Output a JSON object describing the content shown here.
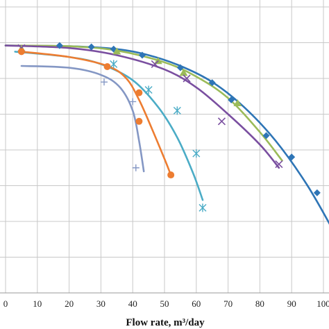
{
  "chart_data": {
    "type": "scatter",
    "title": "",
    "xlabel": "Flow rate, m³/day",
    "ylabel": "",
    "xlim": [
      0,
      100
    ],
    "x_ticks": [
      0,
      10,
      20,
      30,
      40,
      50,
      60,
      70,
      80,
      90,
      100
    ],
    "x_tick_labels": [
      "0",
      "10",
      "20",
      "30",
      "40",
      "50",
      "60",
      "70",
      "80",
      "90",
      "100"
    ],
    "ylim": [
      0,
      8
    ],
    "grid": true,
    "legend": "none",
    "series": [
      {
        "color": "#2e75b6",
        "marker": "diamond",
        "points": [
          [
            17,
            6.92
          ],
          [
            27,
            6.88
          ],
          [
            34,
            6.82
          ],
          [
            43,
            6.65
          ],
          [
            55,
            6.3
          ],
          [
            65,
            5.88
          ],
          [
            71,
            5.4
          ],
          [
            82,
            4.4
          ],
          [
            90,
            3.8
          ],
          [
            98,
            2.8
          ]
        ],
        "curve": [
          [
            0,
            6.92
          ],
          [
            20,
            6.9
          ],
          [
            35,
            6.82
          ],
          [
            45,
            6.65
          ],
          [
            55,
            6.35
          ],
          [
            65,
            5.9
          ],
          [
            75,
            5.2
          ],
          [
            85,
            4.25
          ],
          [
            95,
            3.0
          ],
          [
            104,
            1.6
          ]
        ]
      },
      {
        "color": "#9bbb59",
        "marker": "triangle",
        "points": [
          [
            5,
            6.82
          ],
          [
            35,
            6.75
          ],
          [
            48,
            6.48
          ],
          [
            56,
            6.15
          ],
          [
            73,
            5.3
          ]
        ],
        "curve": [
          [
            0,
            6.92
          ],
          [
            20,
            6.9
          ],
          [
            35,
            6.78
          ],
          [
            50,
            6.45
          ],
          [
            60,
            6.05
          ],
          [
            70,
            5.45
          ],
          [
            80,
            4.5
          ],
          [
            87,
            3.7
          ]
        ]
      },
      {
        "color": "#7a4fa0",
        "marker": "x",
        "points": [
          [
            5,
            6.85
          ],
          [
            47,
            6.4
          ],
          [
            57,
            6.0
          ],
          [
            68,
            4.8
          ],
          [
            86,
            3.6
          ]
        ],
        "curve": [
          [
            0,
            6.92
          ],
          [
            20,
            6.85
          ],
          [
            35,
            6.65
          ],
          [
            50,
            6.25
          ],
          [
            60,
            5.75
          ],
          [
            70,
            5.0
          ],
          [
            80,
            4.15
          ],
          [
            86,
            3.5
          ]
        ]
      },
      {
        "color": "#4bacc6",
        "marker": "asterisk",
        "points": [
          [
            34,
            6.4
          ],
          [
            45,
            5.68
          ],
          [
            54,
            5.1
          ],
          [
            60,
            3.9
          ],
          [
            62,
            2.38
          ]
        ],
        "curve": [
          [
            3,
            6.75
          ],
          [
            20,
            6.6
          ],
          [
            30,
            6.4
          ],
          [
            40,
            5.95
          ],
          [
            48,
            5.2
          ],
          [
            54,
            4.35
          ],
          [
            59,
            3.35
          ],
          [
            62,
            2.6
          ]
        ]
      },
      {
        "color": "#ed7d31",
        "marker": "circle",
        "points": [
          [
            5,
            6.75
          ],
          [
            32,
            6.33
          ],
          [
            42,
            5.6
          ],
          [
            42,
            4.8
          ],
          [
            52,
            3.3
          ]
        ],
        "curve": [
          [
            5,
            6.75
          ],
          [
            20,
            6.6
          ],
          [
            32,
            6.35
          ],
          [
            38,
            6.0
          ],
          [
            42,
            5.4
          ],
          [
            46,
            4.6
          ],
          [
            50,
            3.75
          ],
          [
            52,
            3.3
          ]
        ]
      },
      {
        "color": "#8497c4",
        "marker": "plus",
        "points": [
          [
            31,
            5.9
          ],
          [
            40,
            5.35
          ],
          [
            41,
            3.5
          ]
        ],
        "curve": [
          [
            5,
            6.35
          ],
          [
            20,
            6.3
          ],
          [
            30,
            6.1
          ],
          [
            36,
            5.75
          ],
          [
            40,
            5.1
          ],
          [
            42,
            4.25
          ],
          [
            43.5,
            3.4
          ]
        ]
      }
    ]
  }
}
